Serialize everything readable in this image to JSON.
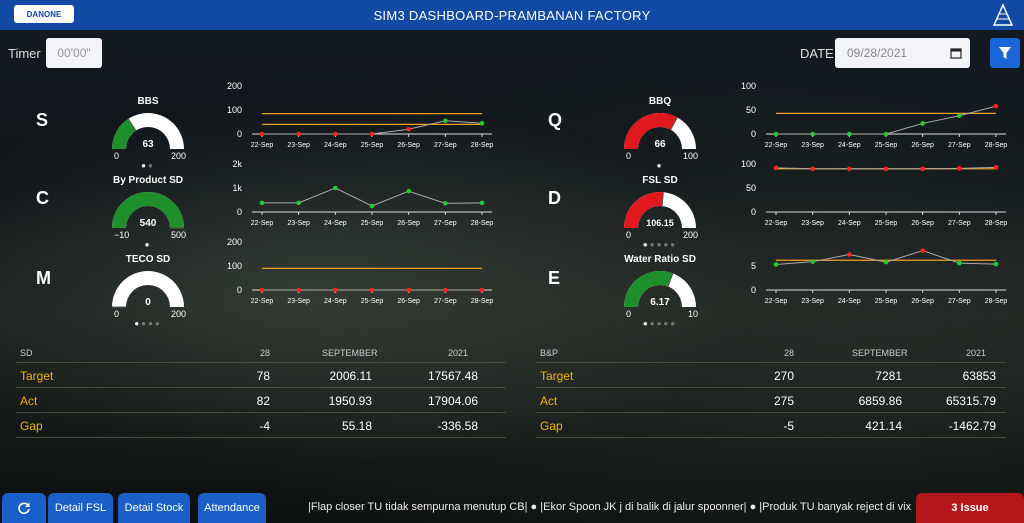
{
  "header": {
    "title": "SIM3 DASHBOARD-PRAMBANAN FACTORY",
    "logo_text": "DANONE",
    "logo_right_icon": "pyramid-icon"
  },
  "filters": {
    "timer_label": "Timer",
    "timer_value": "00'00\"",
    "date_label": "DATE",
    "date_value": "09/28/2021",
    "filter_icon": "funnel-icon"
  },
  "colors": {
    "topbar": "#1149a5",
    "button": "#1a5fc8",
    "issue": "#b3161b",
    "accent_label": "#f0b400",
    "gauge_green": "#1e8f2a",
    "gauge_red": "#e0191e",
    "target_line": "#f0a020"
  },
  "kpis": [
    {
      "letter": "S",
      "gauge_title": "BBS",
      "value": "63",
      "min": "0",
      "max": "200",
      "fraction": 0.315,
      "color": "#1e8f2a",
      "dots_total": 2,
      "dots_active": 1
    },
    {
      "letter": "C",
      "gauge_title": "By Product SD",
      "value": "540",
      "min": "−10",
      "max": "500",
      "fraction": 1.0,
      "color": "#1e8f2a",
      "dots_total": 1,
      "dots_active": 1
    },
    {
      "letter": "M",
      "gauge_title": "TECO SD",
      "value": "0",
      "min": "0",
      "max": "200",
      "fraction": 0.0,
      "color": "#1e8f2a",
      "dots_total": 4,
      "dots_active": 1
    },
    {
      "letter": "Q",
      "gauge_title": "BBQ",
      "value": "66",
      "min": "0",
      "max": "100",
      "fraction": 0.66,
      "color": "#e0191e",
      "dots_total": 1,
      "dots_active": 1
    },
    {
      "letter": "D",
      "gauge_title": "FSL SD",
      "value": "106.15",
      "min": "0",
      "max": "200",
      "fraction": 0.53,
      "color": "#e0191e",
      "dots_total": 5,
      "dots_active": 1
    },
    {
      "letter": "E",
      "gauge_title": "Water Ratio SD",
      "value": "6.17",
      "min": "0",
      "max": "10",
      "fraction": 0.617,
      "color": "#1e8f2a",
      "dots_total": 5,
      "dots_active": 1
    }
  ],
  "chart_data": [
    {
      "type": "line",
      "x": [
        "22-Sep",
        "23-Sep",
        "24-Sep",
        "25-Sep",
        "26-Sep",
        "27-Sep",
        "28-Sep"
      ],
      "yticks": [
        "0",
        "100",
        "200"
      ],
      "ylim": [
        0,
        200
      ],
      "series": [
        {
          "values": [
            0,
            0,
            0,
            0,
            20,
            55,
            45
          ]
        }
      ],
      "point_colors": [
        "red",
        "red",
        "red",
        "red",
        "red",
        "green",
        "green"
      ],
      "targets": [
        85,
        40
      ]
    },
    {
      "type": "line",
      "x": [
        "22-Sep",
        "23-Sep",
        "24-Sep",
        "25-Sep",
        "26-Sep",
        "27-Sep",
        "28-Sep"
      ],
      "yticks": [
        "0",
        "1k",
        "2k"
      ],
      "ylim": [
        0,
        2000
      ],
      "series": [
        {
          "values": [
            380,
            380,
            1000,
            250,
            870,
            360,
            380
          ]
        }
      ],
      "point_colors": [
        "green",
        "green",
        "green",
        "green",
        "green",
        "green",
        "green"
      ],
      "targets": []
    },
    {
      "type": "line",
      "x": [
        "22-Sep",
        "23-Sep",
        "24-Sep",
        "25-Sep",
        "26-Sep",
        "27-Sep",
        "28-Sep"
      ],
      "yticks": [
        "0",
        "100",
        "200"
      ],
      "ylim": [
        0,
        200
      ],
      "series": [
        {
          "values": [
            0,
            0,
            0,
            0,
            0,
            0,
            0
          ]
        }
      ],
      "point_colors": [
        "red",
        "red",
        "red",
        "red",
        "red",
        "red",
        "red"
      ],
      "targets": [
        90
      ]
    },
    {
      "type": "line",
      "x": [
        "22-Sep",
        "23-Sep",
        "24-Sep",
        "25-Sep",
        "26-Sep",
        "27-Sep",
        "28-Sep"
      ],
      "yticks": [
        "0",
        "50",
        "100"
      ],
      "ylim": [
        0,
        100
      ],
      "series": [
        {
          "values": [
            0,
            0,
            0,
            0,
            22,
            38,
            58
          ]
        }
      ],
      "point_colors": [
        "green",
        "green",
        "green",
        "green",
        "green",
        "green",
        "red"
      ],
      "targets": [
        43
      ]
    },
    {
      "type": "line",
      "x": [
        "22-Sep",
        "23-Sep",
        "24-Sep",
        "25-Sep",
        "26-Sep",
        "27-Sep",
        "28-Sep"
      ],
      "yticks": [
        "0",
        "50",
        "100"
      ],
      "ylim": [
        0,
        100
      ],
      "series": [
        {
          "values": [
            92,
            90,
            90,
            90,
            90,
            91,
            93
          ]
        }
      ],
      "point_colors": [
        "red",
        "red",
        "red",
        "red",
        "red",
        "red",
        "red"
      ],
      "targets": [
        90
      ]
    },
    {
      "type": "line",
      "x": [
        "22-Sep",
        "23-Sep",
        "24-Sep",
        "25-Sep",
        "26-Sep",
        "27-Sep",
        "28-Sep"
      ],
      "yticks": [
        "0",
        "5"
      ],
      "ylim": [
        0,
        10
      ],
      "series": [
        {
          "values": [
            5.3,
            5.9,
            7.4,
            5.8,
            8.2,
            5.6,
            5.4
          ]
        }
      ],
      "point_colors": [
        "green",
        "green",
        "red",
        "green",
        "red",
        "green",
        "green"
      ],
      "targets": [
        6.2
      ]
    }
  ],
  "table_sd": {
    "headers": [
      "SD",
      "28",
      "SEPTEMBER",
      "2021"
    ],
    "rows": [
      {
        "label": "Target",
        "day": "78",
        "month": "2006.11",
        "year": "17567.48"
      },
      {
        "label": "Act",
        "day": "82",
        "month": "1950.93",
        "year": "17904.06"
      },
      {
        "label": "Gap",
        "day": "-4",
        "month": "55.18",
        "year": "-336.58"
      }
    ]
  },
  "table_bp": {
    "headers": [
      "B&P",
      "28",
      "SEPTEMBER",
      "2021"
    ],
    "rows": [
      {
        "label": "Target",
        "day": "270",
        "month": "7281",
        "year": "63853"
      },
      {
        "label": "Act",
        "day": "275",
        "month": "6859.86",
        "year": "65315.79"
      },
      {
        "label": "Gap",
        "day": "-5",
        "month": "421.14",
        "year": "-1462.79"
      }
    ]
  },
  "footer": {
    "refresh_icon": "refresh-icon",
    "buttons": [
      "Detail FSL",
      "Detail Stock",
      "Attendance"
    ],
    "ticker": "|Flap closer TU tidak sempurna menutup CB| ● |Ekor Spoon JK j di balik di jalur spoonner| ● |Produk TU banyak reject di vix",
    "issue_label": "3 Issue"
  }
}
